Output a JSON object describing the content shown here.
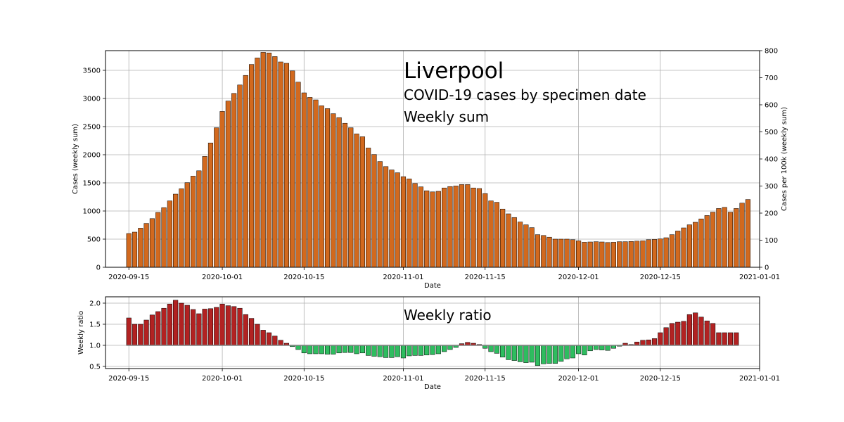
{
  "chart_data": [
    {
      "type": "bar",
      "title": "Liverpool",
      "subtitle": "COVID-19 cases by specimen date",
      "subtitle2": "Weekly sum",
      "xlabel": "Date",
      "ylabel": "Cases (weekly sum)",
      "ylabel_right": "Cases per 100k (weekly sum)",
      "ylim": [
        0,
        3850
      ],
      "ylim_right": [
        0,
        800
      ],
      "yticks": [
        0,
        500,
        1000,
        1500,
        2000,
        2500,
        3000,
        3500
      ],
      "yticks_right": [
        0,
        100,
        200,
        300,
        400,
        500,
        600,
        700,
        800
      ],
      "xlim": [
        "2020-09-11",
        "2021-01-01"
      ],
      "xticks": [
        "2020-09-15",
        "2020-10-01",
        "2020-10-15",
        "2020-11-01",
        "2020-11-15",
        "2020-12-01",
        "2020-12-15",
        "2021-01-01"
      ],
      "grid": true,
      "bar_color": "#d2691e",
      "x_start": "2020-09-15",
      "values": [
        600,
        625,
        695,
        780,
        865,
        975,
        1060,
        1180,
        1300,
        1395,
        1505,
        1620,
        1715,
        1970,
        2210,
        2480,
        2770,
        2955,
        3090,
        3240,
        3410,
        3605,
        3720,
        3820,
        3810,
        3745,
        3650,
        3625,
        3490,
        3290,
        3100,
        3020,
        2975,
        2870,
        2820,
        2730,
        2660,
        2560,
        2480,
        2370,
        2320,
        2120,
        2005,
        1880,
        1790,
        1730,
        1680,
        1610,
        1570,
        1490,
        1430,
        1360,
        1340,
        1350,
        1410,
        1435,
        1445,
        1470,
        1470,
        1410,
        1400,
        1310,
        1180,
        1155,
        1035,
        950,
        885,
        805,
        755,
        705,
        580,
        565,
        535,
        500,
        500,
        500,
        490,
        470,
        445,
        450,
        455,
        450,
        440,
        445,
        455,
        455,
        460,
        465,
        470,
        490,
        495,
        505,
        525,
        580,
        645,
        700,
        755,
        800,
        860,
        920,
        980,
        1045,
        1065,
        980,
        1045,
        1140,
        1205
      ]
    },
    {
      "type": "bar",
      "title": "Weekly ratio",
      "xlabel": "Date",
      "ylabel": "Weekly ratio",
      "ylim": [
        0.45,
        2.15
      ],
      "yticks": [
        0.5,
        1.0,
        1.5,
        2.0
      ],
      "baseline": 1.0,
      "xlim": [
        "2020-09-11",
        "2021-01-01"
      ],
      "xticks": [
        "2020-09-15",
        "2020-10-01",
        "2020-10-15",
        "2020-11-01",
        "2020-11-15",
        "2020-12-01",
        "2020-12-15",
        "2021-01-01"
      ],
      "grid": true,
      "color_up": "#b22222",
      "color_down": "#2ebd5f",
      "x_start": "2020-09-15",
      "values": [
        1.65,
        1.5,
        1.5,
        1.6,
        1.72,
        1.8,
        1.88,
        1.98,
        2.07,
        2.0,
        1.95,
        1.85,
        1.75,
        1.86,
        1.87,
        1.9,
        1.98,
        1.94,
        1.92,
        1.88,
        1.73,
        1.64,
        1.5,
        1.36,
        1.3,
        1.22,
        1.12,
        1.05,
        0.97,
        0.9,
        0.82,
        0.8,
        0.8,
        0.8,
        0.79,
        0.79,
        0.82,
        0.83,
        0.83,
        0.8,
        0.82,
        0.76,
        0.74,
        0.73,
        0.71,
        0.71,
        0.73,
        0.7,
        0.75,
        0.76,
        0.76,
        0.77,
        0.78,
        0.8,
        0.85,
        0.9,
        0.95,
        1.04,
        1.07,
        1.05,
        1.02,
        0.93,
        0.85,
        0.81,
        0.72,
        0.66,
        0.64,
        0.61,
        0.59,
        0.6,
        0.52,
        0.56,
        0.57,
        0.57,
        0.62,
        0.68,
        0.7,
        0.8,
        0.77,
        0.87,
        0.9,
        0.89,
        0.88,
        0.93,
        0.98,
        1.05,
        1.02,
        1.08,
        1.12,
        1.13,
        1.16,
        1.3,
        1.42,
        1.52,
        1.55,
        1.57,
        1.73,
        1.77,
        1.67,
        1.58,
        1.52,
        1.3,
        1.3,
        1.3,
        1.3
      ]
    }
  ]
}
